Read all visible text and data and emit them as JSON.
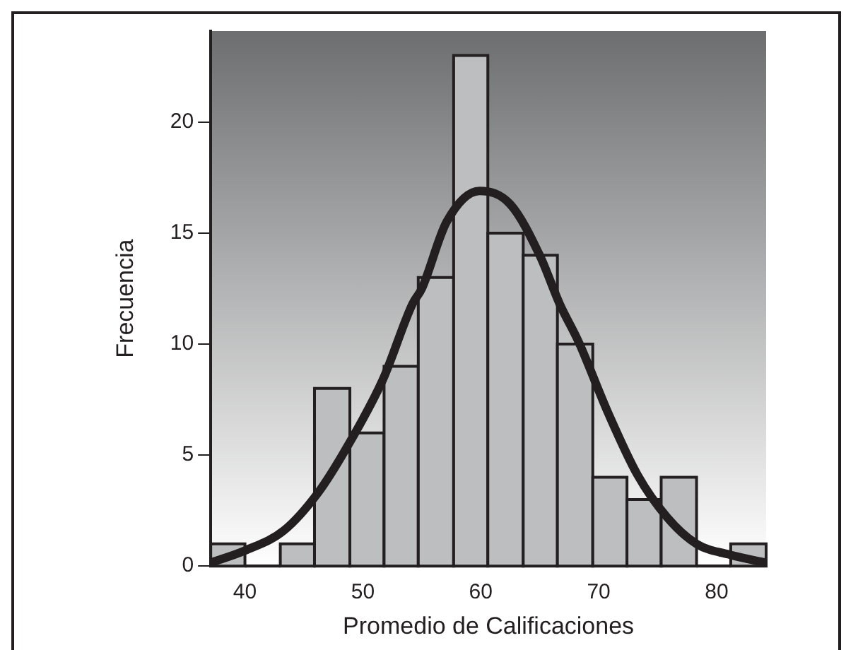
{
  "chart_data": {
    "type": "histogram",
    "xlabel": "Promedio de Calificaciones",
    "ylabel": "Frecuencia",
    "bins": [
      37.1,
      40.0,
      43.0,
      45.9,
      48.9,
      51.8,
      54.7,
      57.7,
      60.6,
      63.6,
      66.5,
      69.5,
      72.4,
      75.3,
      78.3,
      81.2,
      84.2
    ],
    "xlim": [
      37.1,
      84.2
    ],
    "xticks": [
      40,
      50,
      60,
      70,
      80
    ],
    "ylim": [
      0,
      24.1
    ],
    "yticks": [
      0,
      5,
      10,
      15,
      20
    ],
    "marker": "none",
    "line_style": "solid",
    "series": [
      {
        "color": "#bcbec0",
        "values": [
          1,
          0,
          1,
          8,
          6,
          9,
          13,
          23,
          15,
          14,
          10,
          4,
          3,
          4,
          0,
          1
        ]
      },
      {
        "type": "line",
        "color": "#231f20",
        "x": [
          37.1,
          40.0,
          43.3,
          46.2,
          48.7,
          51.7,
          54.2,
          55.0,
          57.1,
          59.9,
          62.5,
          65.0,
          66.7,
          68.3,
          70.8,
          73.3,
          75.8,
          78.3,
          81.2,
          84.2
        ],
        "values": [
          0.15,
          0.7,
          1.6,
          3.3,
          5.4,
          8.4,
          11.8,
          12.5,
          15.5,
          16.9,
          16.3,
          14.0,
          11.8,
          10.1,
          6.9,
          4.1,
          2.2,
          1.0,
          0.5,
          0.15
        ]
      }
    ]
  }
}
